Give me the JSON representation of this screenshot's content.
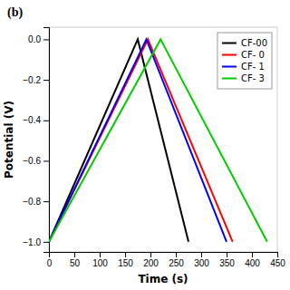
{
  "chart_data": {
    "type": "line",
    "xlabel": "Time (s)",
    "ylabel": "Potential (V)",
    "annotations": [
      "(b)"
    ],
    "series": [
      {
        "name": "CF-00",
        "color": "#000000",
        "x": [
          0,
          175,
          275
        ],
        "values": [
          -1.0,
          0.0,
          -1.0
        ]
      },
      {
        "name": "CF- 0",
        "color": "#ff0000",
        "x": [
          0,
          195,
          362
        ],
        "values": [
          -1.0,
          0.0,
          -1.0
        ]
      },
      {
        "name": "CF- 1",
        "color": "#0000ff",
        "x": [
          0,
          192,
          350
        ],
        "values": [
          -1.0,
          0.0,
          -1.0
        ]
      },
      {
        "name": "CF- 3",
        "color": "#00cc00",
        "x": [
          0,
          220,
          430
        ],
        "values": [
          -1.0,
          0.0,
          -1.0
        ]
      }
    ],
    "xlim": [
      0,
      450
    ],
    "ylim": [
      -1.05,
      0.06
    ],
    "xticks": [
      0,
      50,
      100,
      150,
      200,
      250,
      300,
      350,
      400,
      450
    ],
    "yticks": [
      {
        "value": 0.0,
        "label": "0.0"
      },
      {
        "value": -0.2,
        "label": "−0.2"
      },
      {
        "value": -0.4,
        "label": "−0.4"
      },
      {
        "value": -0.6,
        "label": "−0.6"
      },
      {
        "value": -0.8,
        "label": "−0.8"
      },
      {
        "value": -1.0,
        "label": "−1.0"
      }
    ],
    "grid": false,
    "legend": "upper-right"
  }
}
